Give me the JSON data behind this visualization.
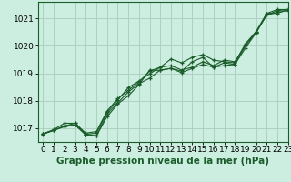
{
  "title": "Graphe pression niveau de la mer (hPa)",
  "bg_color": "#cceee0",
  "grid_color": "#aaccbb",
  "line_color": "#1a5c2a",
  "xlim": [
    -0.5,
    23
  ],
  "ylim": [
    1016.5,
    1021.6
  ],
  "yticks": [
    1017,
    1018,
    1019,
    1020,
    1021
  ],
  "xticks": [
    0,
    1,
    2,
    3,
    4,
    5,
    6,
    7,
    8,
    9,
    10,
    11,
    12,
    13,
    14,
    15,
    16,
    17,
    18,
    19,
    20,
    21,
    22,
    23
  ],
  "tick_fontsize": 6.5,
  "label_fontsize": 7.5,
  "series": [
    [
      1016.78,
      1016.93,
      1017.05,
      1017.12,
      1016.75,
      1016.72,
      1017.42,
      1017.88,
      1018.18,
      1018.58,
      1019.12,
      1019.1,
      1019.18,
      1019.08,
      1019.42,
      1019.58,
      1019.22,
      1019.28,
      1019.32,
      1019.92,
      1020.48,
      1021.12,
      1021.22,
      1021.28
    ],
    [
      1016.8,
      1016.92,
      1017.08,
      1017.12,
      1016.78,
      1016.72,
      1017.52,
      1017.92,
      1018.32,
      1018.62,
      1018.82,
      1019.12,
      1019.18,
      1019.02,
      1019.18,
      1019.32,
      1019.22,
      1019.38,
      1019.32,
      1020.02,
      1020.48,
      1021.18,
      1021.18,
      1021.32
    ],
    [
      1016.8,
      1016.92,
      1017.08,
      1017.18,
      1016.78,
      1016.82,
      1017.58,
      1018.02,
      1018.48,
      1018.72,
      1018.98,
      1019.22,
      1019.28,
      1019.12,
      1019.22,
      1019.42,
      1019.28,
      1019.48,
      1019.42,
      1020.02,
      1020.52,
      1021.12,
      1021.28,
      1021.32
    ],
    [
      1016.8,
      1016.95,
      1017.18,
      1017.18,
      1016.82,
      1016.88,
      1017.62,
      1018.08,
      1018.38,
      1018.68,
      1019.08,
      1019.22,
      1019.52,
      1019.38,
      1019.58,
      1019.68,
      1019.48,
      1019.42,
      1019.38,
      1020.08,
      1020.52,
      1021.18,
      1021.32,
      1021.32
    ]
  ]
}
